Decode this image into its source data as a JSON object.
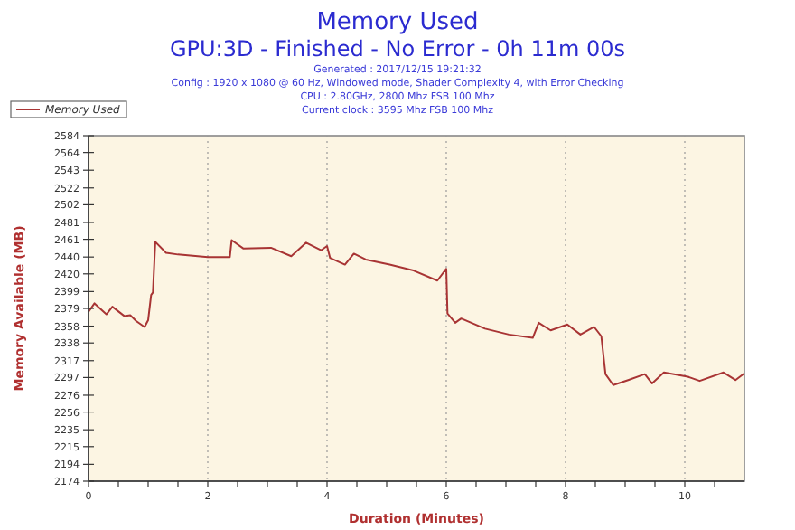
{
  "chart_data": {
    "type": "line",
    "title": "Memory Used",
    "subtitle": "GPU:3D - Finished - No Error - 0h 11m 00s",
    "annotations": [
      "Generated : 2017/12/15 19:21:32",
      "Config : 1920 x 1080 @ 60 Hz, Windowed mode, Shader Complexity 4, with Error Checking",
      "CPU : 2.80GHz, 2800 Mhz FSB 100 Mhz",
      "Current clock : 3595 Mhz FSB 100 Mhz"
    ],
    "xlabel": "Duration (Minutes)",
    "ylabel": "Memory Available (MB)",
    "x": [
      0,
      0.1,
      0.3,
      0.4,
      0.6,
      0.7,
      0.8,
      0.94,
      1.0,
      1.05,
      1.08,
      1.12,
      1.3,
      1.5,
      2.0,
      2.37,
      2.4,
      2.6,
      3.06,
      3.4,
      3.65,
      3.9,
      4.0,
      4.05,
      4.3,
      4.45,
      4.65,
      5.05,
      5.45,
      5.85,
      6.0,
      6.02,
      6.15,
      6.25,
      6.65,
      7.05,
      7.45,
      7.55,
      7.75,
      8.03,
      8.25,
      8.48,
      8.6,
      8.67,
      8.8,
      9.05,
      9.33,
      9.45,
      9.65,
      10.05,
      10.25,
      10.65,
      10.85,
      11.0
    ],
    "series": [
      {
        "name": "Memory Used",
        "color": "#a83434",
        "values": [
          2375,
          2385,
          2372,
          2381,
          2370,
          2371,
          2364,
          2357,
          2365,
          2395,
          2398,
          2458,
          2445,
          2443,
          2440,
          2440,
          2460,
          2450,
          2451,
          2441,
          2457,
          2448,
          2453,
          2439,
          2431,
          2444,
          2437,
          2431,
          2424,
          2412,
          2426,
          2373,
          2362,
          2367,
          2355,
          2348,
          2344,
          2362,
          2353,
          2360,
          2348,
          2357,
          2346,
          2301,
          2288,
          2294,
          2301,
          2290,
          2303,
          2298,
          2293,
          2303,
          2294,
          2302
        ]
      }
    ],
    "xlim": [
      0,
      11
    ],
    "xticks": [
      0,
      {
        "value": 0.5,
        "label": null
      },
      {
        "value": 1,
        "label": null
      },
      {
        "value": 1.5,
        "label": null
      },
      2,
      {
        "value": 2.5,
        "label": null
      },
      {
        "value": 3,
        "label": null
      },
      {
        "value": 3.5,
        "label": null
      },
      4,
      {
        "value": 4.5,
        "label": null
      },
      {
        "value": 5,
        "label": null
      },
      {
        "value": 5.5,
        "label": null
      },
      6,
      {
        "value": 6.5,
        "label": null
      },
      {
        "value": 7,
        "label": null
      },
      {
        "value": 7.5,
        "label": null
      },
      8,
      {
        "value": 8.5,
        "label": null
      },
      {
        "value": 9,
        "label": null
      },
      {
        "value": 9.5,
        "label": null
      },
      10,
      {
        "value": 10.5,
        "label": null
      }
    ],
    "ylim": [
      2174,
      2584
    ],
    "yticks": [
      2174,
      2194,
      2215,
      2235,
      2256,
      2276,
      2297,
      2317,
      2338,
      2358,
      2379,
      2399,
      2420,
      2440,
      2461,
      2481,
      2502,
      2522,
      2543,
      2564,
      2584
    ],
    "grid": "x",
    "legend": "top left",
    "marker": "none",
    "line_style": "solid"
  }
}
